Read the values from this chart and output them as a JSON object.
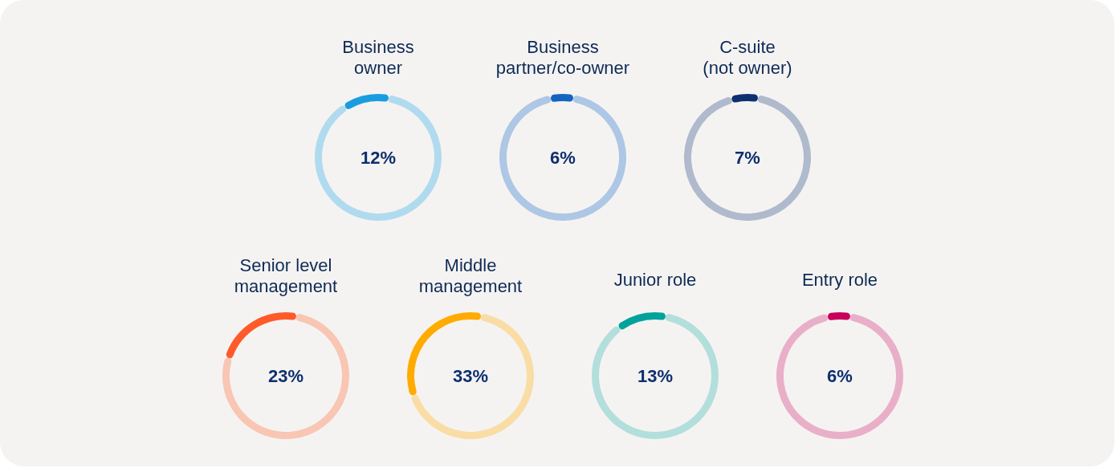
{
  "chart_data": [
    {
      "type": "donut",
      "title": "Business\nowner",
      "categories": [
        null,
        null
      ],
      "values": [
        12,
        88
      ],
      "colors": [
        "#1a9de0",
        "#b0dbee"
      ],
      "value_labels": [
        "12%",
        null
      ]
    },
    {
      "type": "donut",
      "title": "Business\npartner/co-owner",
      "categories": [
        null,
        null
      ],
      "values": [
        6,
        94
      ],
      "colors": [
        "#1565c0",
        "#adc7e5"
      ],
      "value_labels": [
        "6%",
        null
      ]
    },
    {
      "type": "donut",
      "title": "C-suite\n(not owner)",
      "categories": [
        null,
        null
      ],
      "values": [
        7,
        93
      ],
      "colors": [
        "#0d3070",
        "#afbacc"
      ],
      "value_labels": [
        "7%",
        null
      ]
    },
    {
      "type": "donut",
      "title": "Senior level\nmanagement",
      "categories": [
        null,
        null
      ],
      "values": [
        23,
        77
      ],
      "colors": [
        "#ff5a2a",
        "#f8c6b3"
      ],
      "value_labels": [
        "23%",
        null
      ]
    },
    {
      "type": "donut",
      "title": "Middle\nmanagement",
      "categories": [
        null,
        null
      ],
      "values": [
        33,
        67
      ],
      "colors": [
        "#ffab00",
        "#f9dda5"
      ],
      "value_labels": [
        "33%",
        null
      ]
    },
    {
      "type": "donut",
      "title": "Junior role",
      "categories": [
        null,
        null
      ],
      "values": [
        13,
        87
      ],
      "colors": [
        "#00a39b",
        "#b2dfdb"
      ],
      "value_labels": [
        "13%",
        null
      ]
    },
    {
      "type": "donut",
      "title": "Entry role",
      "categories": [
        null,
        null
      ],
      "values": [
        6,
        94
      ],
      "colors": [
        "#c8005a",
        "#e9afc9"
      ],
      "value_labels": [
        "6%",
        null
      ]
    }
  ]
}
